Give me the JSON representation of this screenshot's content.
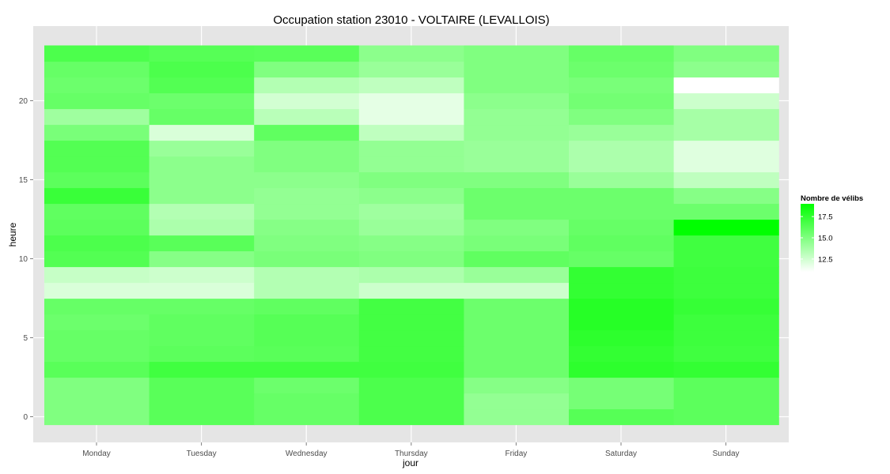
{
  "chart_data": {
    "type": "heatmap",
    "title": "Occupation station 23010 - VOLTAIRE (LEVALLOIS)",
    "xlabel": "jour",
    "ylabel": "heure",
    "categories": [
      "Monday",
      "Tuesday",
      "Wednesday",
      "Thursday",
      "Friday",
      "Saturday",
      "Sunday"
    ],
    "hours": [
      0,
      1,
      2,
      3,
      4,
      5,
      6,
      7,
      8,
      9,
      10,
      11,
      12,
      13,
      14,
      15,
      16,
      17,
      18,
      19,
      20,
      21,
      22,
      23
    ],
    "ylim": [
      -0.5,
      23.5
    ],
    "yticks": [
      0,
      5,
      10,
      15,
      20
    ],
    "grid": true,
    "legend": {
      "title": "Nombre de vélibs",
      "position": "right",
      "ticks": [
        12.5,
        15.0,
        17.5
      ],
      "min": 11.0,
      "max": 19.0
    },
    "colors": {
      "low": "#ffffff",
      "high": "#00ff00",
      "panel": "#e5e5e5",
      "grid": "#ffffff"
    },
    "values": [
      [
        15.0,
        16.2,
        15.8,
        16.6,
        14.4,
        16.3,
        16.1
      ],
      [
        15.0,
        16.2,
        15.8,
        16.6,
        14.4,
        15.3,
        16.1
      ],
      [
        15.0,
        16.2,
        15.6,
        16.6,
        14.8,
        15.3,
        16.1
      ],
      [
        16.2,
        17.0,
        17.0,
        17.0,
        15.6,
        17.6,
        17.4
      ],
      [
        15.8,
        16.1,
        16.2,
        16.9,
        15.6,
        17.4,
        17.0
      ],
      [
        15.8,
        16.0,
        16.3,
        16.9,
        15.6,
        17.6,
        17.1
      ],
      [
        15.6,
        16.0,
        16.3,
        16.9,
        15.6,
        17.8,
        17.1
      ],
      [
        15.8,
        15.8,
        16.0,
        16.9,
        15.6,
        17.8,
        17.3
      ],
      [
        12.2,
        12.2,
        13.4,
        12.6,
        12.6,
        17.4,
        17.1
      ],
      [
        12.8,
        12.6,
        13.4,
        13.6,
        14.2,
        17.4,
        17.1
      ],
      [
        16.4,
        14.8,
        15.2,
        15.0,
        16.0,
        15.8,
        17.0
      ],
      [
        16.6,
        16.2,
        15.0,
        14.8,
        15.2,
        16.0,
        17.0
      ],
      [
        16.1,
        13.6,
        14.8,
        14.2,
        15.0,
        15.8,
        19.0
      ],
      [
        16.0,
        13.4,
        14.4,
        14.0,
        15.6,
        15.6,
        15.6
      ],
      [
        17.2,
        14.6,
        14.4,
        14.6,
        15.6,
        15.6,
        14.8
      ],
      [
        16.1,
        14.6,
        14.6,
        15.0,
        15.0,
        14.2,
        13.0
      ],
      [
        16.4,
        14.6,
        15.0,
        14.4,
        14.2,
        13.6,
        12.0
      ],
      [
        16.4,
        14.2,
        15.0,
        14.4,
        14.2,
        13.6,
        12.0
      ],
      [
        15.2,
        12.2,
        16.0,
        13.0,
        14.4,
        14.2,
        13.8
      ],
      [
        14.0,
        15.8,
        13.2,
        11.8,
        14.4,
        15.0,
        13.8
      ],
      [
        15.8,
        15.6,
        12.4,
        11.8,
        14.6,
        15.4,
        12.6
      ],
      [
        15.6,
        16.4,
        13.4,
        13.0,
        15.0,
        15.2,
        11.0
      ],
      [
        15.8,
        16.6,
        15.0,
        14.2,
        15.0,
        15.6,
        14.6
      ],
      [
        16.6,
        16.3,
        16.2,
        14.6,
        15.0,
        15.8,
        15.0
      ]
    ]
  }
}
